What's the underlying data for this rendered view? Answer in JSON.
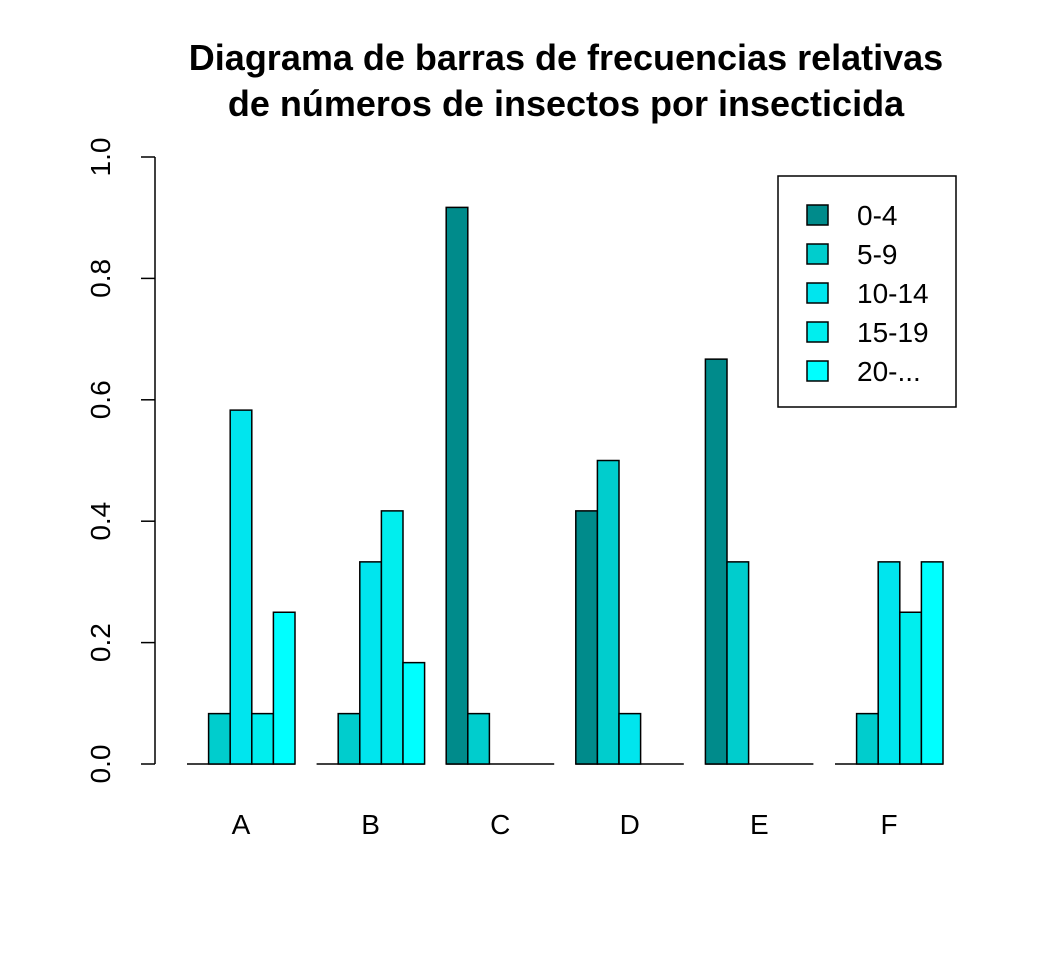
{
  "chart_data": {
    "type": "bar",
    "mode": "grouped",
    "title": [
      "Diagrama de barras de frecuencias relativas",
      "de números de insectos por insecticida"
    ],
    "categories": [
      "A",
      "B",
      "C",
      "D",
      "E",
      "F"
    ],
    "series": [
      {
        "name": "0-4",
        "color": "#008B8B",
        "values": [
          0,
          0,
          0.917,
          0.417,
          0.667,
          0
        ]
      },
      {
        "name": "5-9",
        "color": "#00CDCD",
        "values": [
          0.083,
          0.083,
          0.083,
          0.5,
          0.333,
          0.083
        ]
      },
      {
        "name": "10-14",
        "color": "#00E5EE",
        "values": [
          0.583,
          0.333,
          0,
          0.083,
          0,
          0.333
        ]
      },
      {
        "name": "15-19",
        "color": "#00EEEE",
        "values": [
          0.083,
          0.417,
          0,
          0,
          0,
          0.25
        ]
      },
      {
        "name": "20-...",
        "color": "#00FFFF",
        "values": [
          0.25,
          0.167,
          0,
          0,
          0,
          0.333
        ]
      }
    ],
    "ylim": [
      0,
      1
    ],
    "yticks": [
      "0.0",
      "0.2",
      "0.4",
      "0.6",
      "0.8",
      "1.0"
    ],
    "xlabel": "",
    "ylabel": "",
    "grid": false,
    "legend_position": "top-right"
  }
}
